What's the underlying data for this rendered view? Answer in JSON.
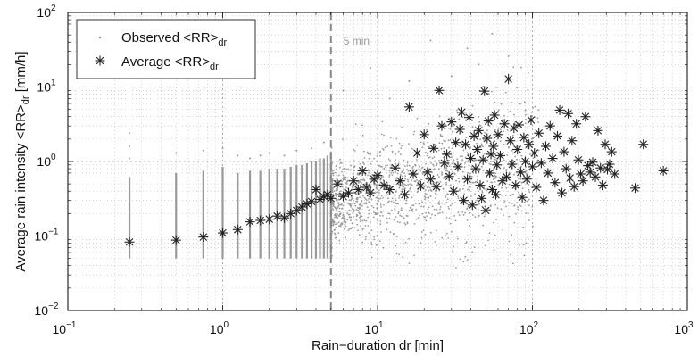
{
  "chart_data": {
    "type": "scatter",
    "xscale": "log",
    "yscale": "log",
    "xlim": [
      0.1,
      1000
    ],
    "ylim": [
      0.01,
      100
    ],
    "xlabel": "Rain−duration dr [min]",
    "ylabel": "Average rain intensity <RR>",
    "ylabel_sub": "dr",
    "ylabel_unit": " [mm/h]",
    "x_ticks": [
      {
        "base": "10",
        "exp": "−1",
        "value": 0.1
      },
      {
        "base": "10",
        "exp": "0",
        "value": 1
      },
      {
        "base": "10",
        "exp": "1",
        "value": 10
      },
      {
        "base": "10",
        "exp": "2",
        "value": 100
      },
      {
        "base": "10",
        "exp": "3",
        "value": 1000
      }
    ],
    "y_ticks": [
      {
        "base": "10",
        "exp": "−2",
        "value": 0.01
      },
      {
        "base": "10",
        "exp": "−1",
        "value": 0.1
      },
      {
        "base": "10",
        "exp": "0",
        "value": 1
      },
      {
        "base": "10",
        "exp": "1",
        "value": 10
      },
      {
        "base": "10",
        "exp": "2",
        "value": 100
      }
    ],
    "grid": true,
    "grid_minor": true,
    "legend_position": "top-left",
    "colors": {
      "observed": "#999999",
      "average": "#222222",
      "vline": "#888888",
      "grid": "#bbbbbb"
    },
    "annotation": {
      "text": "5 min",
      "x": 5
    },
    "vline_x": 5,
    "series": [
      {
        "name": "Observed <RR>",
        "name_sub": "dr",
        "marker": "dot",
        "columns": [
          {
            "x": 0.25,
            "ymin": 0.05,
            "ymax": 0.62,
            "outliers": [
              1.1,
              1.6,
              2.4
            ]
          },
          {
            "x": 0.5,
            "ymin": 0.05,
            "ymax": 0.7,
            "outliers": [
              1.3
            ]
          },
          {
            "x": 0.75,
            "ymin": 0.05,
            "ymax": 0.75,
            "outliers": [
              1.4
            ]
          },
          {
            "x": 1.0,
            "ymin": 0.05,
            "ymax": 0.85,
            "outliers": [
              1.5
            ]
          },
          {
            "x": 1.25,
            "ymin": 0.05,
            "ymax": 0.7,
            "outliers": [
              1.2
            ]
          },
          {
            "x": 1.5,
            "ymin": 0.05,
            "ymax": 0.75,
            "outliers": [
              1.1
            ]
          },
          {
            "x": 1.75,
            "ymin": 0.05,
            "ymax": 0.75,
            "outliers": [
              1.2
            ]
          },
          {
            "x": 2.0,
            "ymin": 0.05,
            "ymax": 0.8,
            "outliers": [
              1.3
            ]
          },
          {
            "x": 2.25,
            "ymin": 0.05,
            "ymax": 0.8,
            "outliers": []
          },
          {
            "x": 2.5,
            "ymin": 0.05,
            "ymax": 0.8,
            "outliers": [
              1.2
            ]
          },
          {
            "x": 2.75,
            "ymin": 0.05,
            "ymax": 0.85,
            "outliers": []
          },
          {
            "x": 3.0,
            "ymin": 0.05,
            "ymax": 0.9,
            "outliers": [
              1.4
            ]
          },
          {
            "x": 3.25,
            "ymin": 0.05,
            "ymax": 0.9,
            "outliers": []
          },
          {
            "x": 3.5,
            "ymin": 0.05,
            "ymax": 0.95,
            "outliers": []
          },
          {
            "x": 3.75,
            "ymin": 0.05,
            "ymax": 1.0,
            "outliers": [
              1.5
            ]
          },
          {
            "x": 4.0,
            "ymin": 0.05,
            "ymax": 1.0,
            "outliers": []
          },
          {
            "x": 4.25,
            "ymin": 0.05,
            "ymax": 1.1,
            "outliers": []
          },
          {
            "x": 4.5,
            "ymin": 0.05,
            "ymax": 1.1,
            "outliers": [
              1.8
            ]
          },
          {
            "x": 4.75,
            "ymin": 0.05,
            "ymax": 1.2,
            "outliers": []
          },
          {
            "x": 5.0,
            "ymin": 0.05,
            "ymax": 1.3,
            "outliers": []
          }
        ],
        "points": [
          {
            "x": 22,
            "y": 42
          },
          {
            "x": 38,
            "y": 33
          },
          {
            "x": 55,
            "y": 52
          },
          {
            "x": 9,
            "y": 18
          },
          {
            "x": 16,
            "y": 12
          },
          {
            "x": 30,
            "y": 14
          },
          {
            "x": 45,
            "y": 20
          },
          {
            "x": 70,
            "y": 26
          },
          {
            "x": 6,
            "y": 9
          },
          {
            "x": 12,
            "y": 7
          }
        ],
        "cloud": {
          "x_from": 5,
          "x_to": 110,
          "y_center_from": 0.3,
          "y_center_to": 0.9,
          "spread": 0.45,
          "count": 1400
        }
      },
      {
        "name": "Average <RR>",
        "name_sub": "dr",
        "marker": "asterisk",
        "points": [
          {
            "x": 0.25,
            "y": 0.083
          },
          {
            "x": 0.5,
            "y": 0.088
          },
          {
            "x": 0.75,
            "y": 0.097
          },
          {
            "x": 1.0,
            "y": 0.11
          },
          {
            "x": 1.25,
            "y": 0.122
          },
          {
            "x": 1.5,
            "y": 0.155
          },
          {
            "x": 1.75,
            "y": 0.162
          },
          {
            "x": 2.0,
            "y": 0.168
          },
          {
            "x": 2.25,
            "y": 0.185
          },
          {
            "x": 2.5,
            "y": 0.175
          },
          {
            "x": 2.75,
            "y": 0.2
          },
          {
            "x": 3.0,
            "y": 0.22
          },
          {
            "x": 3.25,
            "y": 0.245
          },
          {
            "x": 3.5,
            "y": 0.27
          },
          {
            "x": 3.75,
            "y": 0.29
          },
          {
            "x": 4.0,
            "y": 0.42
          },
          {
            "x": 4.25,
            "y": 0.31
          },
          {
            "x": 4.5,
            "y": 0.34
          },
          {
            "x": 4.75,
            "y": 0.36
          },
          {
            "x": 5.0,
            "y": 0.32
          },
          {
            "x": 5.5,
            "y": 0.5
          },
          {
            "x": 6.0,
            "y": 0.34
          },
          {
            "x": 6.5,
            "y": 0.38
          },
          {
            "x": 7.0,
            "y": 0.55
          },
          {
            "x": 7.5,
            "y": 0.42
          },
          {
            "x": 8.0,
            "y": 0.75
          },
          {
            "x": 8.5,
            "y": 0.45
          },
          {
            "x": 9.0,
            "y": 0.38
          },
          {
            "x": 9.5,
            "y": 0.58
          },
          {
            "x": 10,
            "y": 0.65
          },
          {
            "x": 11,
            "y": 0.48
          },
          {
            "x": 12,
            "y": 0.42
          },
          {
            "x": 13,
            "y": 0.82
          },
          {
            "x": 14,
            "y": 0.55
          },
          {
            "x": 15,
            "y": 0.36
          },
          {
            "x": 16,
            "y": 5.4
          },
          {
            "x": 17,
            "y": 0.68
          },
          {
            "x": 18,
            "y": 1.3
          },
          {
            "x": 19,
            "y": 0.47
          },
          {
            "x": 20,
            "y": 2.3
          },
          {
            "x": 21,
            "y": 0.72
          },
          {
            "x": 22,
            "y": 0.58
          },
          {
            "x": 23,
            "y": 1.5
          },
          {
            "x": 24,
            "y": 0.46
          },
          {
            "x": 25,
            "y": 9.0
          },
          {
            "x": 26,
            "y": 3.0
          },
          {
            "x": 27,
            "y": 0.95
          },
          {
            "x": 28,
            "y": 1.25
          },
          {
            "x": 29,
            "y": 0.63
          },
          {
            "x": 30,
            "y": 3.4
          },
          {
            "x": 31,
            "y": 0.4
          },
          {
            "x": 32,
            "y": 1.8
          },
          {
            "x": 33,
            "y": 0.85
          },
          {
            "x": 34,
            "y": 2.7
          },
          {
            "x": 35,
            "y": 4.6
          },
          {
            "x": 36,
            "y": 0.3
          },
          {
            "x": 37,
            "y": 1.7
          },
          {
            "x": 38,
            "y": 0.58
          },
          {
            "x": 39,
            "y": 3.9
          },
          {
            "x": 40,
            "y": 1.1
          },
          {
            "x": 41,
            "y": 0.26
          },
          {
            "x": 42,
            "y": 2.2
          },
          {
            "x": 43,
            "y": 0.8
          },
          {
            "x": 44,
            "y": 1.45
          },
          {
            "x": 45,
            "y": 2.6
          },
          {
            "x": 46,
            "y": 0.48
          },
          {
            "x": 47,
            "y": 0.32
          },
          {
            "x": 48,
            "y": 1.05
          },
          {
            "x": 49,
            "y": 8.8
          },
          {
            "x": 50,
            "y": 0.22
          },
          {
            "x": 51,
            "y": 2.05
          },
          {
            "x": 52,
            "y": 3.5
          },
          {
            "x": 53,
            "y": 0.7
          },
          {
            "x": 54,
            "y": 1.25
          },
          {
            "x": 55,
            "y": 0.42
          },
          {
            "x": 56,
            "y": 1.6
          },
          {
            "x": 57,
            "y": 4.2
          },
          {
            "x": 58,
            "y": 0.36
          },
          {
            "x": 59,
            "y": 0.9
          },
          {
            "x": 60,
            "y": 2.3
          },
          {
            "x": 62,
            "y": 1.2
          },
          {
            "x": 64,
            "y": 0.55
          },
          {
            "x": 66,
            "y": 3.2
          },
          {
            "x": 68,
            "y": 0.62
          },
          {
            "x": 70,
            "y": 12.8
          },
          {
            "x": 72,
            "y": 1.9
          },
          {
            "x": 74,
            "y": 0.92
          },
          {
            "x": 76,
            "y": 2.8
          },
          {
            "x": 78,
            "y": 0.48
          },
          {
            "x": 80,
            "y": 1.45
          },
          {
            "x": 82,
            "y": 3.1
          },
          {
            "x": 84,
            "y": 0.72
          },
          {
            "x": 86,
            "y": 0.33
          },
          {
            "x": 88,
            "y": 2.1
          },
          {
            "x": 90,
            "y": 1.0
          },
          {
            "x": 92,
            "y": 0.58
          },
          {
            "x": 95,
            "y": 1.7
          },
          {
            "x": 98,
            "y": 3.6
          },
          {
            "x": 100,
            "y": 0.85
          },
          {
            "x": 103,
            "y": 1.3
          },
          {
            "x": 106,
            "y": 0.45
          },
          {
            "x": 110,
            "y": 2.4
          },
          {
            "x": 114,
            "y": 0.95
          },
          {
            "x": 118,
            "y": 0.3
          },
          {
            "x": 122,
            "y": 1.6
          },
          {
            "x": 126,
            "y": 0.7
          },
          {
            "x": 130,
            "y": 3.0
          },
          {
            "x": 135,
            "y": 1.1
          },
          {
            "x": 140,
            "y": 0.52
          },
          {
            "x": 145,
            "y": 2.2
          },
          {
            "x": 150,
            "y": 4.9
          },
          {
            "x": 155,
            "y": 0.38
          },
          {
            "x": 160,
            "y": 1.35
          },
          {
            "x": 165,
            "y": 0.8
          },
          {
            "x": 170,
            "y": 4.4
          },
          {
            "x": 175,
            "y": 0.6
          },
          {
            "x": 180,
            "y": 1.9
          },
          {
            "x": 186,
            "y": 0.46
          },
          {
            "x": 192,
            "y": 3.2
          },
          {
            "x": 198,
            "y": 1.05
          },
          {
            "x": 205,
            "y": 0.68
          },
          {
            "x": 212,
            "y": 0.55
          },
          {
            "x": 220,
            "y": 4.0
          },
          {
            "x": 228,
            "y": 0.88
          },
          {
            "x": 236,
            "y": 0.72
          },
          {
            "x": 245,
            "y": 0.98
          },
          {
            "x": 255,
            "y": 0.62
          },
          {
            "x": 265,
            "y": 2.6
          },
          {
            "x": 275,
            "y": 0.82
          },
          {
            "x": 285,
            "y": 0.48
          },
          {
            "x": 295,
            "y": 1.7
          },
          {
            "x": 305,
            "y": 0.78
          },
          {
            "x": 315,
            "y": 0.92
          },
          {
            "x": 325,
            "y": 1.35
          },
          {
            "x": 340,
            "y": 0.68
          },
          {
            "x": 460,
            "y": 0.44
          },
          {
            "x": 520,
            "y": 1.7
          },
          {
            "x": 700,
            "y": 0.75
          }
        ]
      }
    ]
  }
}
